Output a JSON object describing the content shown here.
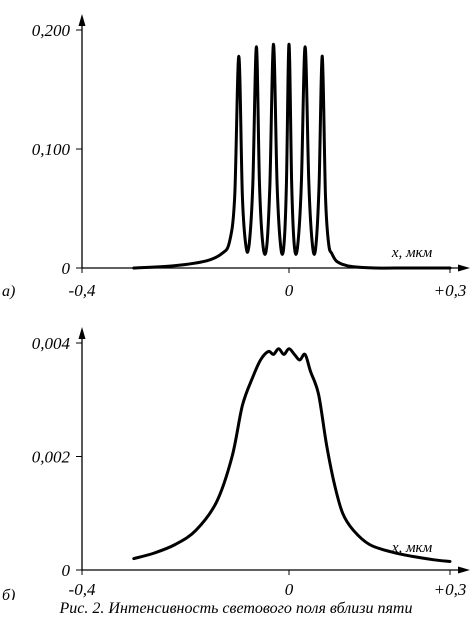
{
  "caption": "Рис. 2. Интенсивность светового поля вблизи пяти",
  "chart_data": [
    {
      "type": "line",
      "panel_label": "а)",
      "xlabel": "x, мкм",
      "ylabel": "",
      "xlim": [
        -0.4,
        0.3
      ],
      "ylim": [
        0,
        0.2
      ],
      "xticks": [
        "-0,4",
        "0",
        "+0,3"
      ],
      "yticks": [
        "0",
        "0,100",
        "0,200"
      ],
      "series": [
        {
          "x": [
            -0.3,
            -0.22,
            -0.16,
            -0.13,
            -0.115,
            -0.105,
            -0.097,
            -0.09,
            -0.083,
            -0.077,
            -0.07,
            -0.063,
            -0.057,
            -0.05,
            -0.043,
            -0.037,
            -0.03,
            -0.023,
            -0.016,
            -0.01,
            -0.005,
            0.0,
            0.005,
            0.01,
            0.016,
            0.023,
            0.03,
            0.037,
            0.044,
            0.05,
            0.056,
            0.062,
            0.068,
            0.074,
            0.08,
            0.088,
            0.1,
            0.12,
            0.16,
            0.22,
            0.3
          ],
          "y": [
            0.0,
            0.002,
            0.006,
            0.012,
            0.022,
            0.06,
            0.178,
            0.06,
            0.018,
            0.02,
            0.07,
            0.186,
            0.07,
            0.018,
            0.018,
            0.07,
            0.188,
            0.07,
            0.018,
            0.018,
            0.07,
            0.188,
            0.07,
            0.018,
            0.018,
            0.07,
            0.186,
            0.07,
            0.018,
            0.018,
            0.07,
            0.178,
            0.06,
            0.02,
            0.012,
            0.006,
            0.003,
            0.001,
            0.0,
            0.0,
            0.0
          ]
        }
      ]
    },
    {
      "type": "line",
      "panel_label": "б)",
      "xlabel": "x, мкм",
      "ylabel": "",
      "xlim": [
        -0.4,
        0.3
      ],
      "ylim": [
        0,
        0.004
      ],
      "xticks": [
        "-0,4",
        "0",
        "+0,3"
      ],
      "yticks": [
        "0",
        "0,002",
        "0,004"
      ],
      "series": [
        {
          "x": [
            -0.3,
            -0.26,
            -0.22,
            -0.18,
            -0.14,
            -0.11,
            -0.09,
            -0.07,
            -0.055,
            -0.04,
            -0.03,
            -0.02,
            -0.01,
            0.0,
            0.01,
            0.02,
            0.03,
            0.04,
            0.055,
            0.07,
            0.085,
            0.1,
            0.12,
            0.15,
            0.19,
            0.23,
            0.27,
            0.3
          ],
          "y": [
            0.0002,
            0.0003,
            0.00045,
            0.0007,
            0.0012,
            0.002,
            0.0029,
            0.0034,
            0.0037,
            0.00385,
            0.0038,
            0.0039,
            0.0038,
            0.0039,
            0.0038,
            0.0037,
            0.0038,
            0.0035,
            0.0031,
            0.0022,
            0.0015,
            0.001,
            0.0007,
            0.00045,
            0.00032,
            0.00024,
            0.00018,
            0.00015
          ]
        }
      ]
    }
  ]
}
